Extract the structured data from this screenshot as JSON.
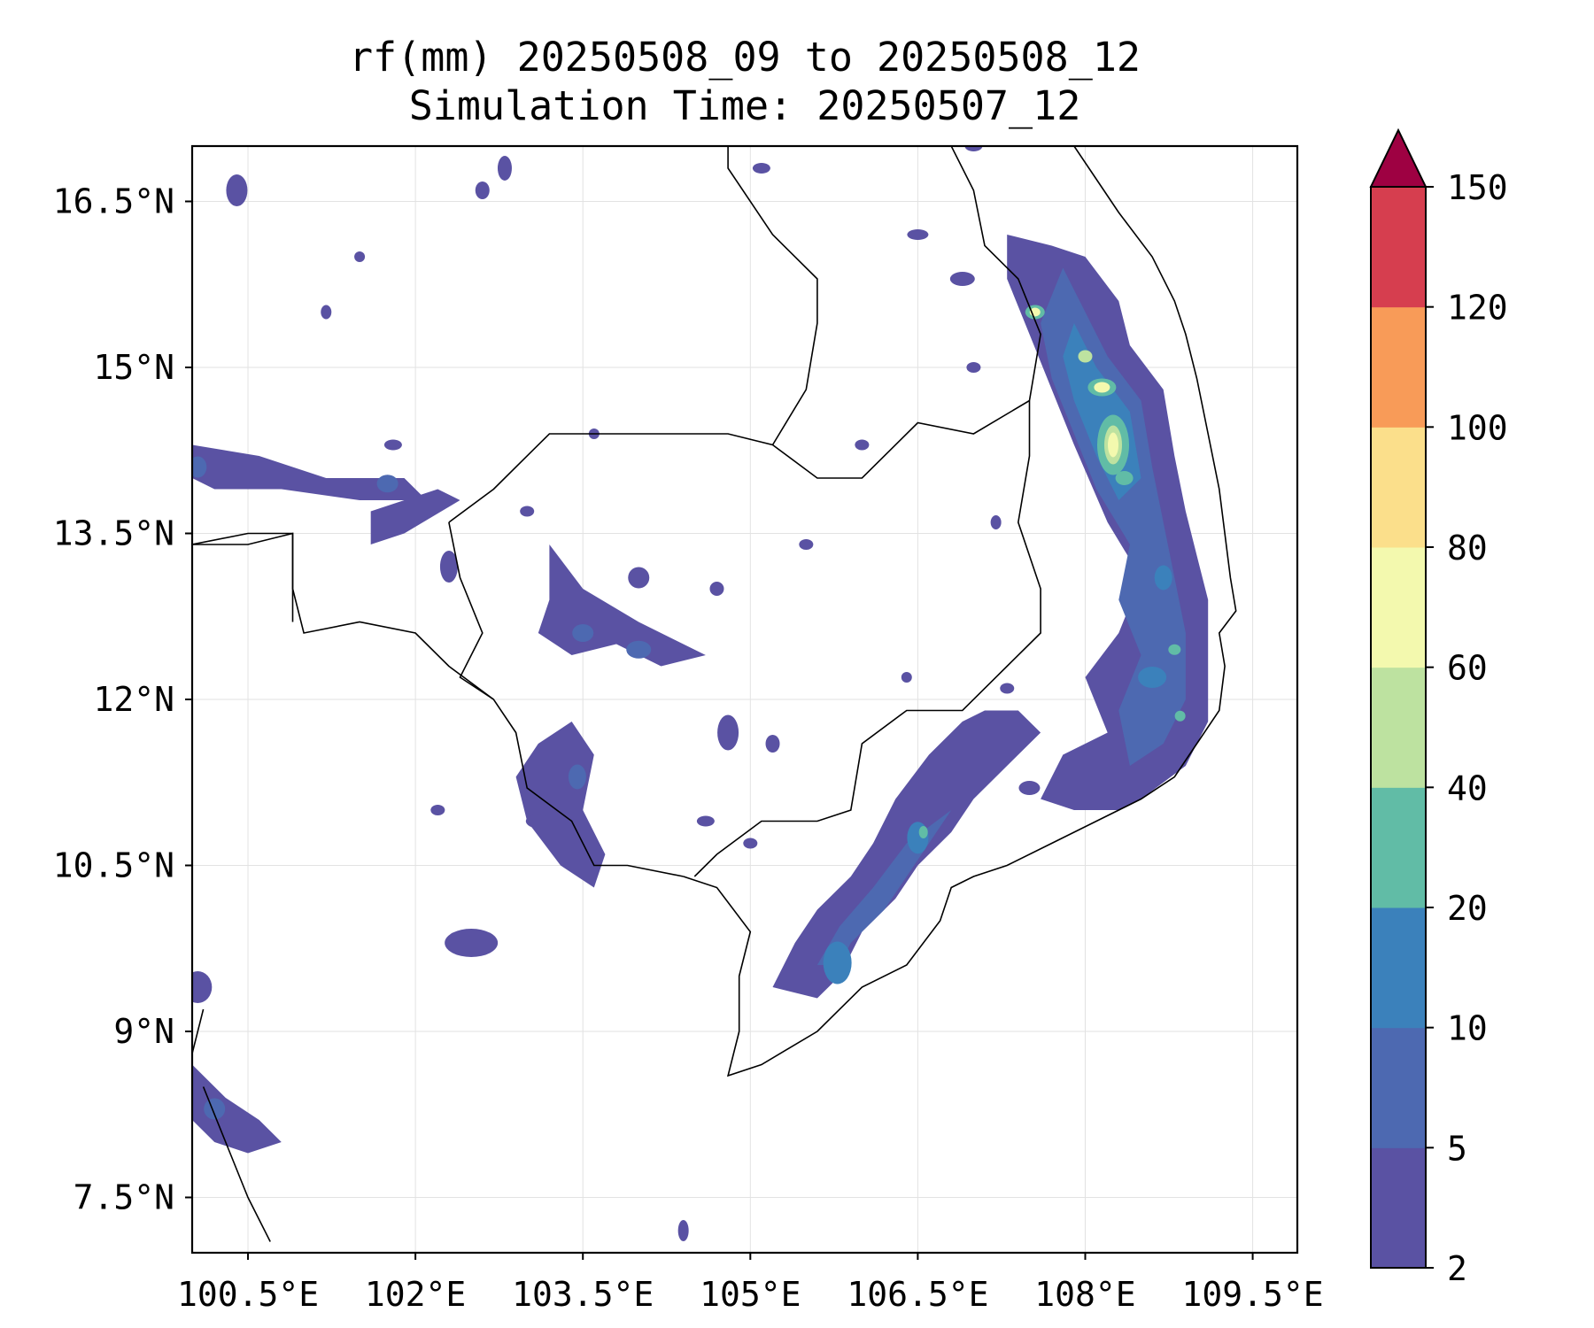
{
  "title": {
    "line1": "rf(mm) 20250508_09 to 20250508_12",
    "line2": "Simulation Time: 20250507_12"
  },
  "map": {
    "lon_range": [
      100.0,
      109.9
    ],
    "lat_range": [
      7.0,
      17.0
    ],
    "lon_ticks": [
      "100.5°E",
      "102°E",
      "103.5°E",
      "105°E",
      "106.5°E",
      "108°E",
      "109.5°E"
    ],
    "lat_ticks": [
      "16.5°N",
      "15°N",
      "13.5°N",
      "12°N",
      "10.5°N",
      "9°N",
      "7.5°N"
    ],
    "grid": true
  },
  "colorbar": {
    "unit": "mm",
    "levels": [
      2,
      5,
      10,
      20,
      40,
      60,
      80,
      100,
      120,
      150
    ],
    "labels": [
      "150",
      "120",
      "100",
      "80",
      "60",
      "40",
      "20",
      "10",
      "5",
      "2"
    ],
    "colors": [
      "#5a52a3",
      "#4d69b1",
      "#3b81bb",
      "#61bca6",
      "#bde2a0",
      "#f3f9ae",
      "#fbdf8b",
      "#f89b58",
      "#d63e4f",
      "#9e0142"
    ],
    "extend": "max"
  },
  "chart_data": {
    "type": "heatmap",
    "title": "rf(mm) 20250508_09 to 20250508_12",
    "subtitle": "Simulation Time: 20250507_12",
    "xlim": [
      100.0,
      109.9
    ],
    "ylim": [
      7.0,
      17.0
    ],
    "regions": [
      {
        "lon": 108.3,
        "lat": 14.3,
        "value": 60
      },
      {
        "lon": 108.1,
        "lat": 14.8,
        "value": 40
      },
      {
        "lon": 108.0,
        "lat": 15.1,
        "value": 20
      },
      {
        "lon": 107.5,
        "lat": 15.5,
        "value": 20
      },
      {
        "lon": 108.7,
        "lat": 12.5,
        "value": 20
      },
      {
        "lon": 108.8,
        "lat": 11.8,
        "value": 20
      },
      {
        "lon": 106.5,
        "lat": 10.8,
        "value": 20
      },
      {
        "lon": 105.8,
        "lat": 9.6,
        "value": 10
      },
      {
        "lon": 103.5,
        "lat": 12.6,
        "value": 10
      },
      {
        "lon": 101.8,
        "lat": 14.2,
        "value": 10
      },
      {
        "lon": 100.2,
        "lat": 8.3,
        "value": 10
      },
      {
        "lon": 103.5,
        "lat": 11.0,
        "value": 5
      }
    ]
  }
}
